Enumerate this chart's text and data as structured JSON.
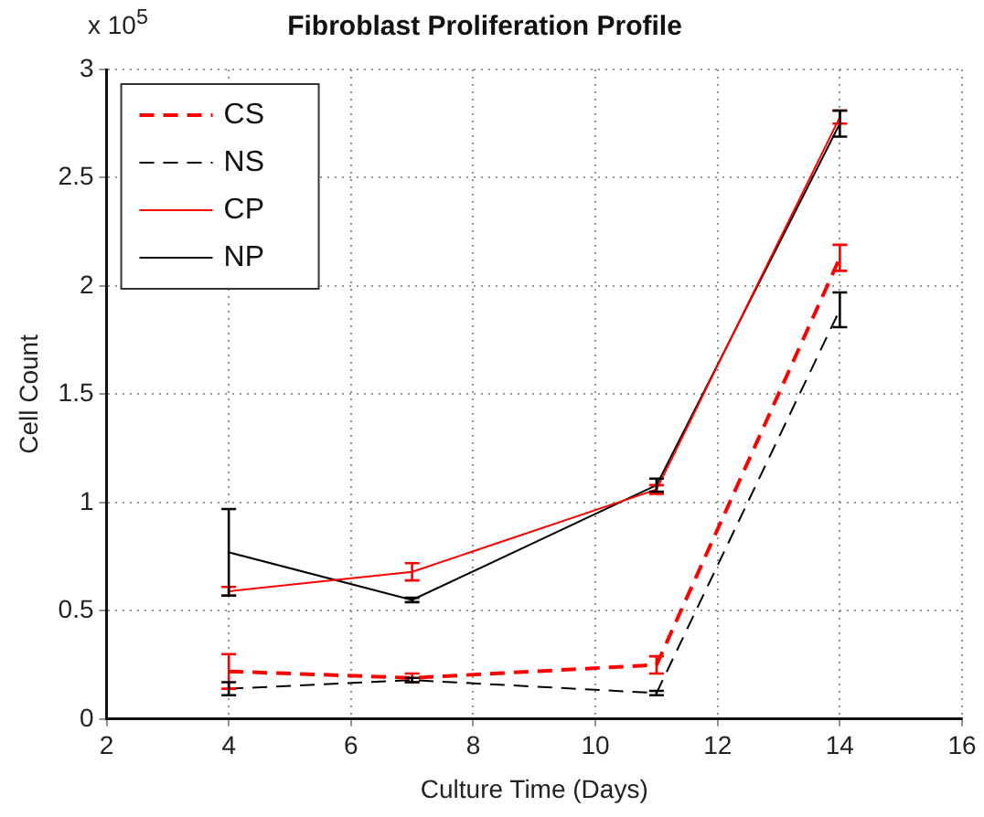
{
  "chart_data": {
    "type": "line",
    "title": "Fibroblast Proliferation Profile",
    "xlabel": "Culture Time (Days)",
    "ylabel": "Cell Count",
    "annotations": [
      "x 10$^{5}$"
    ],
    "x": [
      4,
      7,
      11,
      14
    ],
    "xlim": [
      2,
      16
    ],
    "xticks": [
      2,
      4,
      6,
      8,
      10,
      12,
      14,
      16
    ],
    "ylim": [
      0,
      3
    ],
    "yticks": [
      0,
      0.5,
      1,
      1.5,
      2,
      2.5,
      3
    ],
    "grid": true,
    "legend": "top left",
    "series": [
      {
        "name": "CS",
        "color": "#ff0000",
        "line_style": "dashed",
        "values": [
          0.22,
          0.19,
          0.25,
          2.13
        ],
        "errors": [
          0.08,
          0.02,
          0.04,
          0.06
        ]
      },
      {
        "name": "NS",
        "color": "#000000",
        "line_style": "dashed",
        "values": [
          0.14,
          0.18,
          0.12,
          1.89
        ],
        "errors": [
          0.03,
          0.01,
          0.01,
          0.08
        ]
      },
      {
        "name": "CP",
        "color": "#ff0000",
        "line_style": "solid",
        "values": [
          0.59,
          0.68,
          1.06,
          2.78
        ],
        "errors": [
          0.02,
          0.04,
          0.02,
          0.03
        ]
      },
      {
        "name": "NP",
        "color": "#000000",
        "line_style": "solid",
        "values": [
          0.77,
          0.55,
          1.08,
          2.75
        ],
        "errors": [
          0.2,
          0.01,
          0.03,
          0.06
        ]
      }
    ]
  }
}
